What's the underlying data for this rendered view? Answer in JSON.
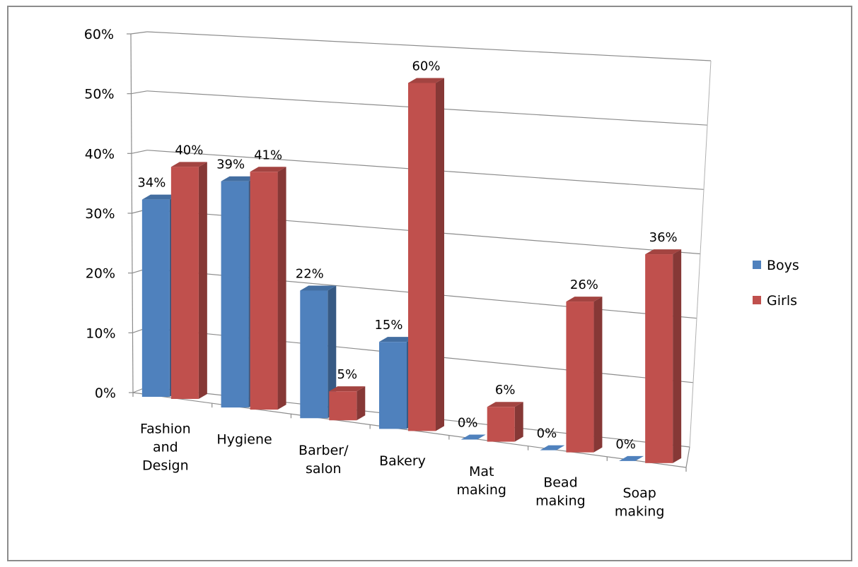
{
  "chart_data": {
    "type": "bar",
    "title": "",
    "xlabel": "",
    "ylabel": "",
    "categories": [
      [
        "Fashion",
        "and",
        "Design"
      ],
      [
        "Hygiene"
      ],
      [
        "Barber/",
        "salon"
      ],
      [
        "Bakery"
      ],
      [
        "Mat",
        "making"
      ],
      [
        "Bead",
        "making"
      ],
      [
        "Soap",
        "making"
      ]
    ],
    "series": [
      {
        "name": "Boys",
        "color": "#4f81bd",
        "values": [
          34,
          39,
          22,
          15,
          0,
          0,
          0
        ],
        "labels": [
          "34%",
          "39%",
          "22%",
          "15%",
          "0%",
          "0%",
          "0%"
        ]
      },
      {
        "name": "Girls",
        "color": "#c0504d",
        "values": [
          40,
          41,
          5,
          60,
          6,
          26,
          36
        ],
        "labels": [
          "40%",
          "41%",
          "5%",
          "60%",
          "6%",
          "26%",
          "36%"
        ]
      }
    ],
    "yticks": [
      "0%",
      "10%",
      "20%",
      "30%",
      "40%",
      "50%",
      "60%"
    ],
    "ylim": [
      0,
      60
    ],
    "grid": true,
    "legend": "right",
    "view": "3d-perspective"
  }
}
